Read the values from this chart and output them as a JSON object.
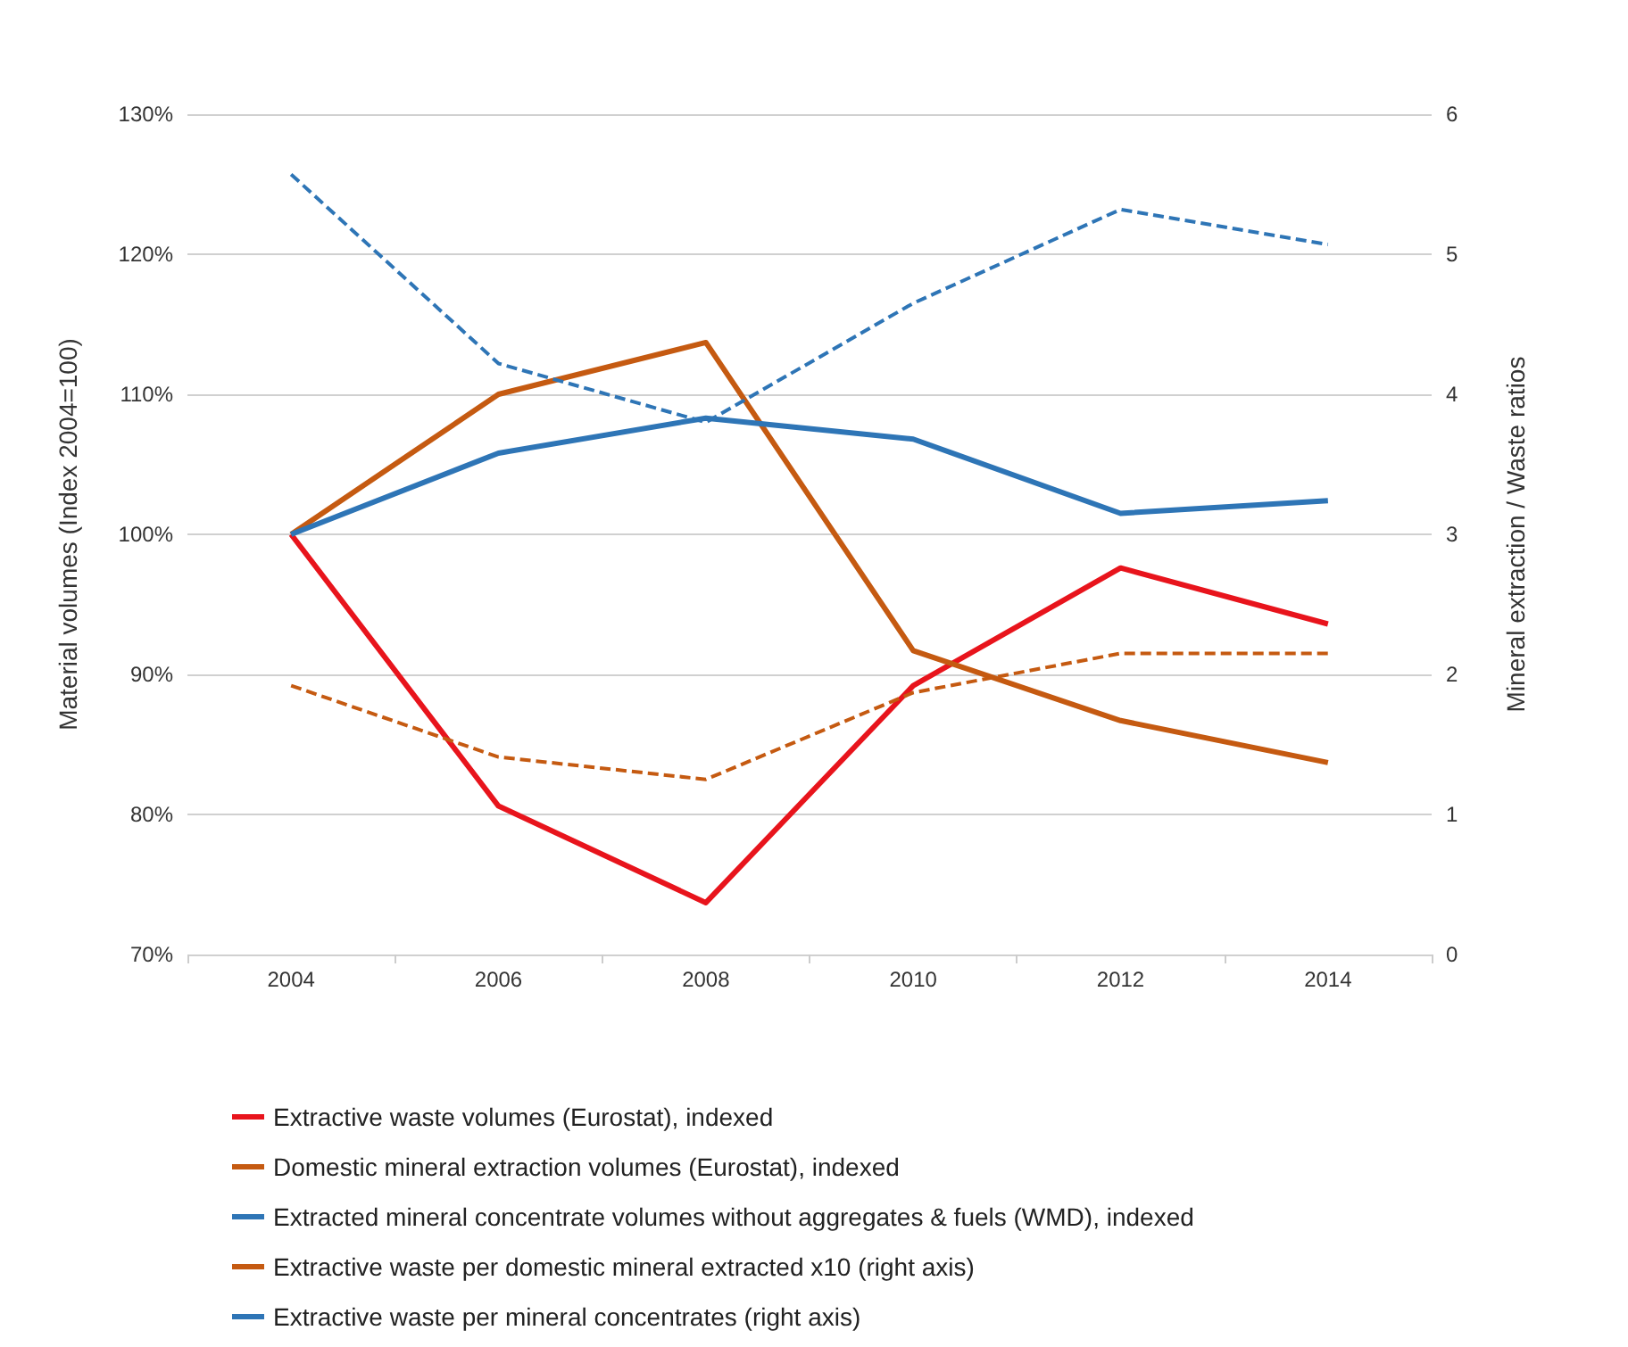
{
  "chart_data": {
    "type": "line",
    "ylabel": "Material volumes (Index 2004=100)",
    "y2label": "Mineral extraction / Waste ratios",
    "categories": [
      "2004",
      "2006",
      "2008",
      "2010",
      "2012",
      "2014"
    ],
    "series": [
      {
        "name": "Extractive waste volumes (Eurostat), indexed",
        "color": "#e8141c",
        "values": [
          100,
          80.6,
          73.7,
          89.2,
          97.6,
          93.6
        ]
      },
      {
        "name": "Domestic mineral extraction volumes (Eurostat), indexed",
        "color": "#c55a11",
        "values": [
          100,
          110,
          113.7,
          91.7,
          86.7,
          83.7
        ]
      },
      {
        "name": "Extracted mineral concentrate volumes without aggregates & fuels (WMD), indexed",
        "color": "#2e75b6",
        "values": [
          100,
          105.8,
          108.3,
          106.8,
          101.5,
          102.4
        ]
      },
      {
        "name": "Extractive waste per domestic mineral extracted x10 (right axis)",
        "color": "#c55a11",
        "axis": "y2",
        "line_style": "dashed",
        "values": [
          1.92,
          1.41,
          1.25,
          1.87,
          2.15,
          2.15
        ]
      },
      {
        "name": "Extractive waste per mineral concentrates (right axis)",
        "color": "#2e75b6",
        "axis": "y2",
        "line_style": "dashed",
        "values": [
          5.57,
          4.22,
          3.8,
          4.65,
          5.32,
          5.07
        ]
      }
    ],
    "ylim": [
      70,
      130
    ],
    "yticks": [
      {
        "value": 70,
        "label": "70%"
      },
      {
        "value": 80,
        "label": "80%"
      },
      {
        "value": 90,
        "label": "90%"
      },
      {
        "value": 100,
        "label": "100%"
      },
      {
        "value": 110,
        "label": "110%"
      },
      {
        "value": 120,
        "label": "120%"
      },
      {
        "value": 130,
        "label": "130%"
      }
    ],
    "y2lim": [
      0,
      6
    ],
    "y2ticks": [
      0,
      1,
      2,
      3,
      4,
      5,
      6
    ],
    "grid": "y",
    "legend": "bottom",
    "marker": "none",
    "line_style": "solid"
  }
}
